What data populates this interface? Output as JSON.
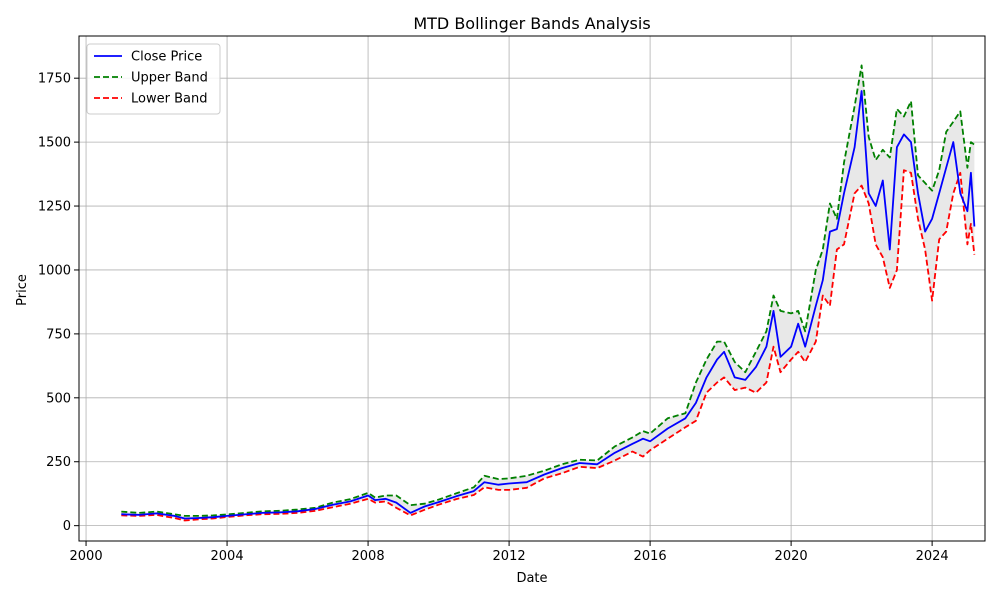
{
  "chart_data": {
    "type": "line",
    "title": "MTD Bollinger Bands Analysis",
    "xlabel": "Date",
    "ylabel": "Price",
    "xlim": [
      1999.8,
      2025.5
    ],
    "ylim": [
      -60,
      1915
    ],
    "x_ticks": [
      2000,
      2004,
      2008,
      2012,
      2016,
      2020,
      2024
    ],
    "y_ticks": [
      0,
      250,
      500,
      750,
      1000,
      1250,
      1500,
      1750
    ],
    "grid": true,
    "legend_position": "top-left",
    "band_fill_color": "#e8e8e8",
    "series": [
      {
        "name": "Close Price",
        "color": "#0000ff",
        "style": "solid",
        "points": [
          [
            2001.0,
            45
          ],
          [
            2001.5,
            42
          ],
          [
            2002.0,
            48
          ],
          [
            2002.5,
            38
          ],
          [
            2002.8,
            28
          ],
          [
            2003.2,
            30
          ],
          [
            2003.6,
            33
          ],
          [
            2004.0,
            38
          ],
          [
            2004.5,
            44
          ],
          [
            2005.0,
            50
          ],
          [
            2005.5,
            52
          ],
          [
            2006.0,
            56
          ],
          [
            2006.5,
            65
          ],
          [
            2007.0,
            82
          ],
          [
            2007.5,
            95
          ],
          [
            2008.0,
            118
          ],
          [
            2008.2,
            100
          ],
          [
            2008.5,
            105
          ],
          [
            2008.8,
            90
          ],
          [
            2009.2,
            50
          ],
          [
            2009.6,
            75
          ],
          [
            2010.0,
            92
          ],
          [
            2010.5,
            115
          ],
          [
            2011.0,
            135
          ],
          [
            2011.3,
            170
          ],
          [
            2011.7,
            160
          ],
          [
            2012.0,
            165
          ],
          [
            2012.5,
            170
          ],
          [
            2013.0,
            200
          ],
          [
            2013.5,
            225
          ],
          [
            2014.0,
            245
          ],
          [
            2014.5,
            240
          ],
          [
            2015.0,
            285
          ],
          [
            2015.5,
            320
          ],
          [
            2015.8,
            340
          ],
          [
            2016.0,
            330
          ],
          [
            2016.5,
            380
          ],
          [
            2017.0,
            420
          ],
          [
            2017.3,
            480
          ],
          [
            2017.6,
            580
          ],
          [
            2017.9,
            650
          ],
          [
            2018.1,
            680
          ],
          [
            2018.4,
            580
          ],
          [
            2018.7,
            570
          ],
          [
            2019.0,
            620
          ],
          [
            2019.3,
            700
          ],
          [
            2019.5,
            840
          ],
          [
            2019.7,
            660
          ],
          [
            2020.0,
            700
          ],
          [
            2020.2,
            790
          ],
          [
            2020.4,
            700
          ],
          [
            2020.7,
            860
          ],
          [
            2020.9,
            960
          ],
          [
            2021.1,
            1150
          ],
          [
            2021.3,
            1160
          ],
          [
            2021.5,
            1300
          ],
          [
            2021.8,
            1480
          ],
          [
            2022.0,
            1700
          ],
          [
            2022.2,
            1300
          ],
          [
            2022.4,
            1250
          ],
          [
            2022.6,
            1350
          ],
          [
            2022.8,
            1080
          ],
          [
            2023.0,
            1480
          ],
          [
            2023.2,
            1530
          ],
          [
            2023.4,
            1500
          ],
          [
            2023.6,
            1300
          ],
          [
            2023.8,
            1150
          ],
          [
            2024.0,
            1200
          ],
          [
            2024.2,
            1300
          ],
          [
            2024.4,
            1400
          ],
          [
            2024.6,
            1500
          ],
          [
            2024.8,
            1300
          ],
          [
            2025.0,
            1230
          ],
          [
            2025.1,
            1380
          ],
          [
            2025.2,
            1170
          ]
        ]
      },
      {
        "name": "Upper Band",
        "color": "#008000",
        "style": "dashed",
        "points": [
          [
            2001.0,
            55
          ],
          [
            2001.5,
            50
          ],
          [
            2002.0,
            55
          ],
          [
            2002.5,
            45
          ],
          [
            2002.8,
            38
          ],
          [
            2003.2,
            38
          ],
          [
            2003.6,
            40
          ],
          [
            2004.0,
            44
          ],
          [
            2004.5,
            50
          ],
          [
            2005.0,
            56
          ],
          [
            2005.5,
            58
          ],
          [
            2006.0,
            63
          ],
          [
            2006.5,
            70
          ],
          [
            2007.0,
            90
          ],
          [
            2007.5,
            104
          ],
          [
            2008.0,
            128
          ],
          [
            2008.2,
            110
          ],
          [
            2008.5,
            118
          ],
          [
            2008.8,
            118
          ],
          [
            2009.2,
            80
          ],
          [
            2009.6,
            86
          ],
          [
            2010.0,
            102
          ],
          [
            2010.5,
            126
          ],
          [
            2011.0,
            150
          ],
          [
            2011.3,
            195
          ],
          [
            2011.7,
            182
          ],
          [
            2012.0,
            185
          ],
          [
            2012.5,
            195
          ],
          [
            2013.0,
            215
          ],
          [
            2013.5,
            240
          ],
          [
            2014.0,
            258
          ],
          [
            2014.5,
            255
          ],
          [
            2015.0,
            310
          ],
          [
            2015.5,
            345
          ],
          [
            2015.8,
            370
          ],
          [
            2016.0,
            360
          ],
          [
            2016.5,
            420
          ],
          [
            2017.0,
            440
          ],
          [
            2017.3,
            560
          ],
          [
            2017.6,
            650
          ],
          [
            2017.9,
            720
          ],
          [
            2018.1,
            720
          ],
          [
            2018.4,
            640
          ],
          [
            2018.7,
            600
          ],
          [
            2019.0,
            680
          ],
          [
            2019.3,
            760
          ],
          [
            2019.5,
            900
          ],
          [
            2019.7,
            840
          ],
          [
            2020.0,
            830
          ],
          [
            2020.2,
            840
          ],
          [
            2020.4,
            760
          ],
          [
            2020.7,
            1000
          ],
          [
            2020.9,
            1080
          ],
          [
            2021.1,
            1260
          ],
          [
            2021.3,
            1200
          ],
          [
            2021.5,
            1420
          ],
          [
            2021.8,
            1640
          ],
          [
            2022.0,
            1800
          ],
          [
            2022.2,
            1520
          ],
          [
            2022.4,
            1430
          ],
          [
            2022.6,
            1470
          ],
          [
            2022.8,
            1440
          ],
          [
            2023.0,
            1630
          ],
          [
            2023.2,
            1600
          ],
          [
            2023.4,
            1660
          ],
          [
            2023.6,
            1370
          ],
          [
            2023.8,
            1340
          ],
          [
            2024.0,
            1310
          ],
          [
            2024.2,
            1390
          ],
          [
            2024.4,
            1540
          ],
          [
            2024.6,
            1580
          ],
          [
            2024.8,
            1620
          ],
          [
            2025.0,
            1400
          ],
          [
            2025.1,
            1500
          ],
          [
            2025.2,
            1490
          ]
        ]
      },
      {
        "name": "Lower Band",
        "color": "#ff0000",
        "style": "dashed",
        "points": [
          [
            2001.0,
            40
          ],
          [
            2001.5,
            38
          ],
          [
            2002.0,
            42
          ],
          [
            2002.5,
            30
          ],
          [
            2002.8,
            20
          ],
          [
            2003.2,
            25
          ],
          [
            2003.6,
            28
          ],
          [
            2004.0,
            34
          ],
          [
            2004.5,
            40
          ],
          [
            2005.0,
            45
          ],
          [
            2005.5,
            46
          ],
          [
            2006.0,
            50
          ],
          [
            2006.5,
            58
          ],
          [
            2007.0,
            72
          ],
          [
            2007.5,
            86
          ],
          [
            2008.0,
            105
          ],
          [
            2008.2,
            90
          ],
          [
            2008.5,
            95
          ],
          [
            2008.8,
            70
          ],
          [
            2009.2,
            40
          ],
          [
            2009.6,
            62
          ],
          [
            2010.0,
            82
          ],
          [
            2010.5,
            104
          ],
          [
            2011.0,
            120
          ],
          [
            2011.3,
            150
          ],
          [
            2011.7,
            140
          ],
          [
            2012.0,
            140
          ],
          [
            2012.5,
            148
          ],
          [
            2013.0,
            185
          ],
          [
            2013.5,
            205
          ],
          [
            2014.0,
            230
          ],
          [
            2014.5,
            225
          ],
          [
            2015.0,
            255
          ],
          [
            2015.5,
            290
          ],
          [
            2015.8,
            270
          ],
          [
            2016.0,
            295
          ],
          [
            2016.5,
            340
          ],
          [
            2017.0,
            385
          ],
          [
            2017.3,
            410
          ],
          [
            2017.6,
            520
          ],
          [
            2017.9,
            560
          ],
          [
            2018.1,
            580
          ],
          [
            2018.4,
            530
          ],
          [
            2018.7,
            540
          ],
          [
            2019.0,
            520
          ],
          [
            2019.3,
            560
          ],
          [
            2019.5,
            700
          ],
          [
            2019.7,
            600
          ],
          [
            2020.0,
            650
          ],
          [
            2020.2,
            680
          ],
          [
            2020.4,
            640
          ],
          [
            2020.7,
            720
          ],
          [
            2020.9,
            900
          ],
          [
            2021.1,
            860
          ],
          [
            2021.3,
            1080
          ],
          [
            2021.5,
            1100
          ],
          [
            2021.8,
            1300
          ],
          [
            2022.0,
            1330
          ],
          [
            2022.2,
            1260
          ],
          [
            2022.4,
            1100
          ],
          [
            2022.6,
            1050
          ],
          [
            2022.8,
            930
          ],
          [
            2023.0,
            1000
          ],
          [
            2023.2,
            1390
          ],
          [
            2023.4,
            1380
          ],
          [
            2023.6,
            1200
          ],
          [
            2023.8,
            1080
          ],
          [
            2024.0,
            880
          ],
          [
            2024.2,
            1120
          ],
          [
            2024.4,
            1150
          ],
          [
            2024.6,
            1300
          ],
          [
            2024.8,
            1380
          ],
          [
            2025.0,
            1100
          ],
          [
            2025.1,
            1180
          ],
          [
            2025.2,
            1060
          ]
        ]
      }
    ]
  }
}
